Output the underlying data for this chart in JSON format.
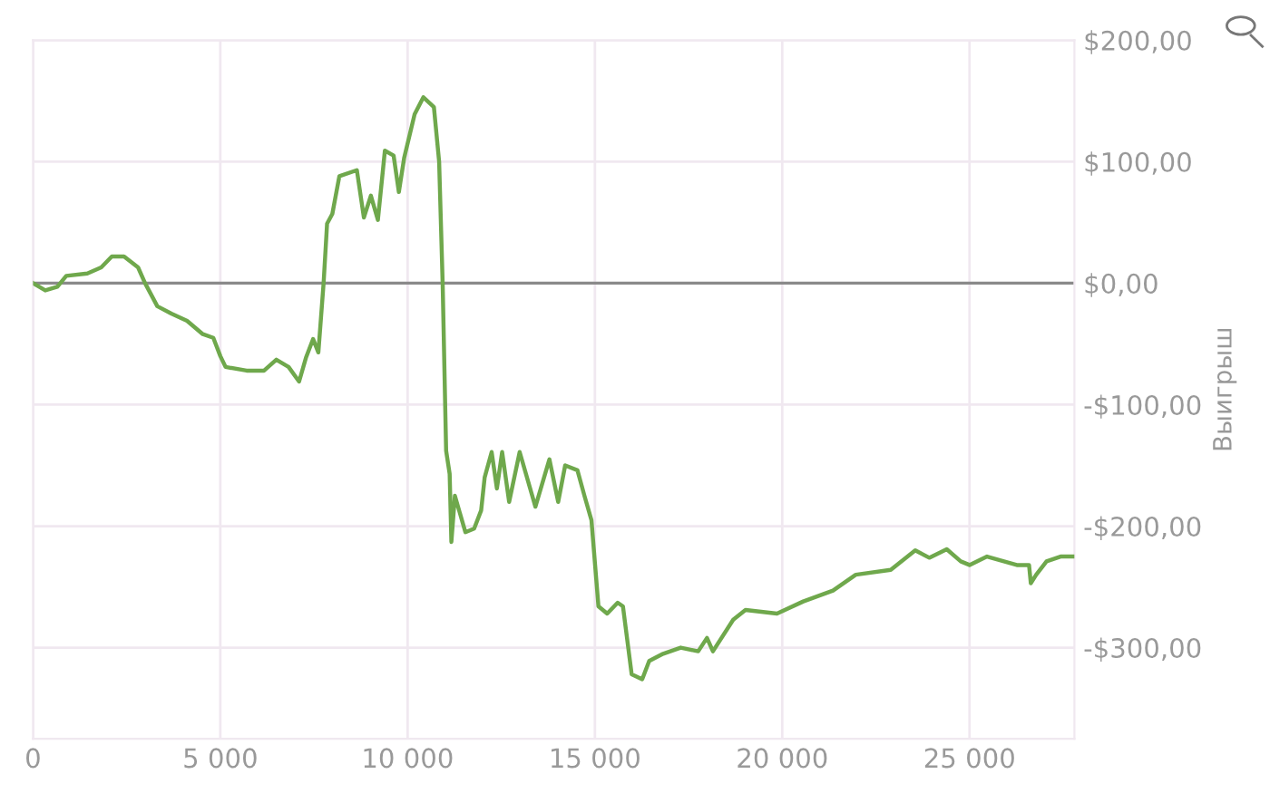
{
  "chart_data": {
    "type": "line",
    "ylabel": "Выигрыш",
    "x": [
      0,
      327,
      650,
      888,
      1450,
      1822,
      2103,
      2430,
      2804,
      2990,
      3318,
      3692,
      4112,
      4533,
      4813,
      5000,
      5140,
      5700,
      6168,
      6495,
      6822,
      7103,
      7290,
      7477,
      7617,
      7757,
      7850,
      7990,
      8178,
      8645,
      8832,
      9019,
      9206,
      9393,
      9626,
      9766,
      9907,
      10187,
      10421,
      10701,
      10841,
      10935,
      11028,
      11122,
      11168,
      11262,
      11542,
      11776,
      11963,
      12056,
      12243,
      12383,
      12523,
      12710,
      12991,
      13411,
      13785,
      14019,
      14206,
      14533,
      14720,
      14907,
      15094,
      15327,
      15607,
      15748,
      15981,
      16262,
      16449,
      16822,
      17290,
      17757,
      17991,
      18150,
      18692,
      19019,
      19860,
      20561,
      21355,
      21963,
      22897,
      23551,
      23925,
      24392,
      24766,
      25000,
      25467,
      26262,
      26589,
      26636,
      26780,
      27056,
      27430,
      27757
    ],
    "series": [
      {
        "color": "#6fa84c",
        "values": [
          0,
          -6,
          -3,
          6,
          8,
          13,
          22,
          22,
          13,
          0,
          -19,
          -25,
          -31,
          -42,
          -45,
          -60,
          -69,
          -72,
          -72,
          -63,
          -69,
          -81,
          -61,
          -46,
          -57,
          0,
          49,
          57,
          88,
          93,
          54,
          72,
          52,
          109,
          105,
          75,
          103,
          139,
          153,
          145,
          100,
          0,
          -138,
          -157,
          -213,
          -175,
          -205,
          -202,
          -187,
          -160,
          -139,
          -169,
          -139,
          -180,
          -139,
          -184,
          -145,
          -180,
          -150,
          -154,
          -175,
          -195,
          -266,
          -272,
          -263,
          -266,
          -322,
          -326,
          -311,
          -305,
          -300,
          -303,
          -292,
          -303,
          -277,
          -269,
          -272,
          -262,
          -253,
          -240,
          -236,
          -220,
          -226,
          -219,
          -229,
          -232,
          -225,
          -232,
          -232,
          -247,
          -240,
          -229,
          -225,
          -225
        ]
      }
    ],
    "xlim": [
      0,
      27800
    ],
    "ylim": [
      -375,
      200
    ],
    "xticks": [
      0,
      {
        "value": 5000,
        "label": "5 000"
      },
      {
        "value": 10000,
        "label": "10 000"
      },
      {
        "value": 15000,
        "label": "15 000"
      },
      {
        "value": 20000,
        "label": "20 000"
      },
      {
        "value": 25000,
        "label": "25 000"
      }
    ],
    "yticks": [
      {
        "value": -300,
        "label": "-$300,00"
      },
      {
        "value": -200,
        "label": "-$200,00"
      },
      {
        "value": -100,
        "label": "-$100,00"
      },
      {
        "value": 0,
        "label": "$0,00"
      },
      {
        "value": 100,
        "label": "$100,00"
      },
      {
        "value": 200,
        "label": "$200,00"
      }
    ],
    "ref_lines": [
      {
        "axis": "y",
        "value": 0,
        "color": "#8a8a8a"
      }
    ],
    "grid": true,
    "legend": false,
    "marker": "none",
    "line_style": "solid"
  }
}
